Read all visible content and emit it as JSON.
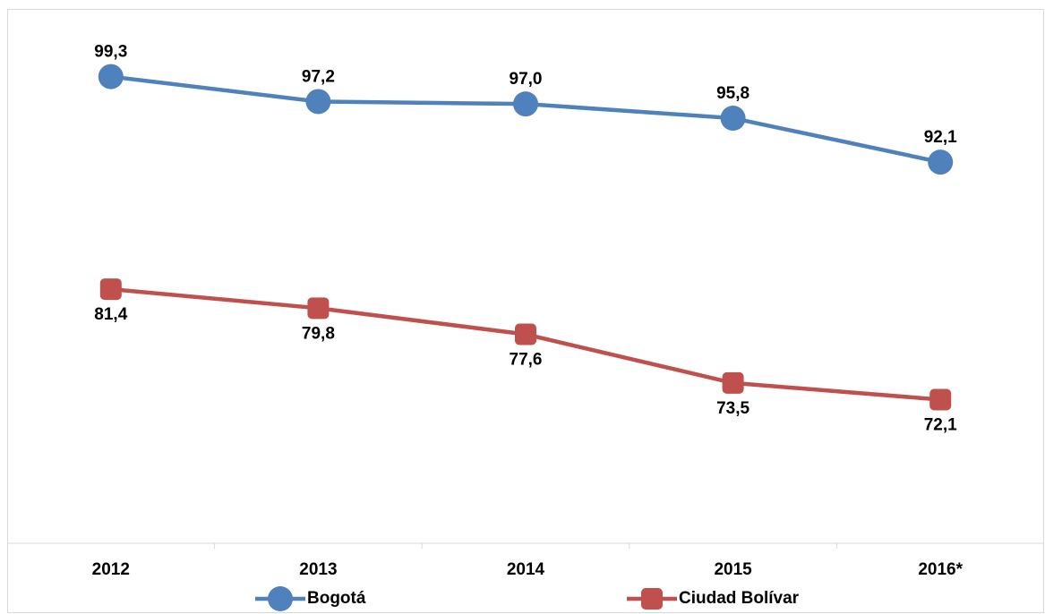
{
  "chart_data": {
    "type": "line",
    "categories": [
      "2012",
      "2013",
      "2014",
      "2015",
      "2016*"
    ],
    "ylim": [
      60,
      105
    ],
    "legend": "bottom",
    "series": [
      {
        "name": "Bogotá",
        "color": "#4f81bd",
        "marker": "circle",
        "values": [
          99.3,
          97.2,
          97.0,
          95.8,
          92.1
        ],
        "value_labels": [
          "99,3",
          "97,2",
          "97,0",
          "95,8",
          "92,1"
        ]
      },
      {
        "name": "Ciudad Bolívar",
        "color": "#c0504d",
        "marker": "square",
        "values": [
          81.4,
          79.8,
          77.6,
          73.5,
          72.1
        ],
        "value_labels": [
          "81,4",
          "79,8",
          "77,6",
          "73,5",
          "72,1"
        ]
      }
    ]
  }
}
